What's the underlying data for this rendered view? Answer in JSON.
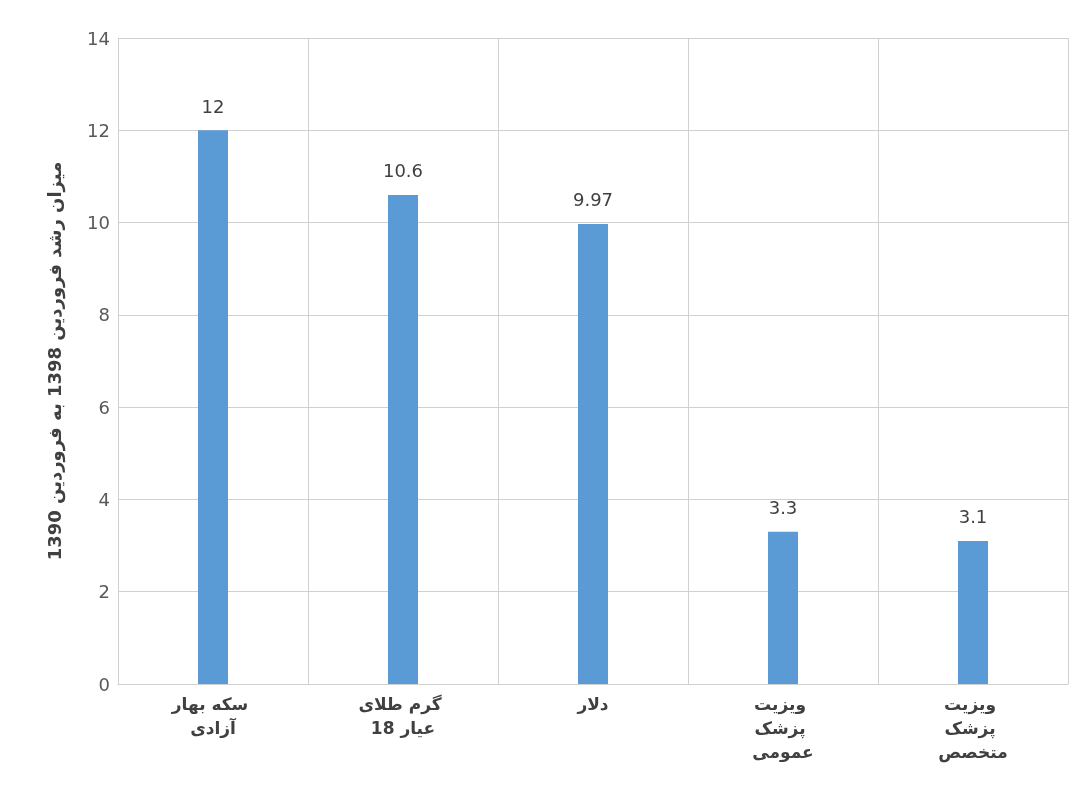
{
  "chart_data": {
    "type": "bar",
    "ylabel": "میزان رشد فروردین 1398 به فروردین 1390",
    "categories": [
      "سکه بهار آزادی",
      "گرم طلای 18 عیار",
      "دلار",
      "ویزیت پزشک عمومی",
      "ویزیت پزشک متخصص"
    ],
    "values": [
      12,
      10.6,
      9.97,
      3.3,
      3.1
    ],
    "color": "#5b9bd5",
    "ylim": [
      0,
      14
    ],
    "yticks": [
      0,
      2,
      4,
      6,
      8,
      10,
      12,
      14
    ],
    "grid": true,
    "data_labels": true
  }
}
